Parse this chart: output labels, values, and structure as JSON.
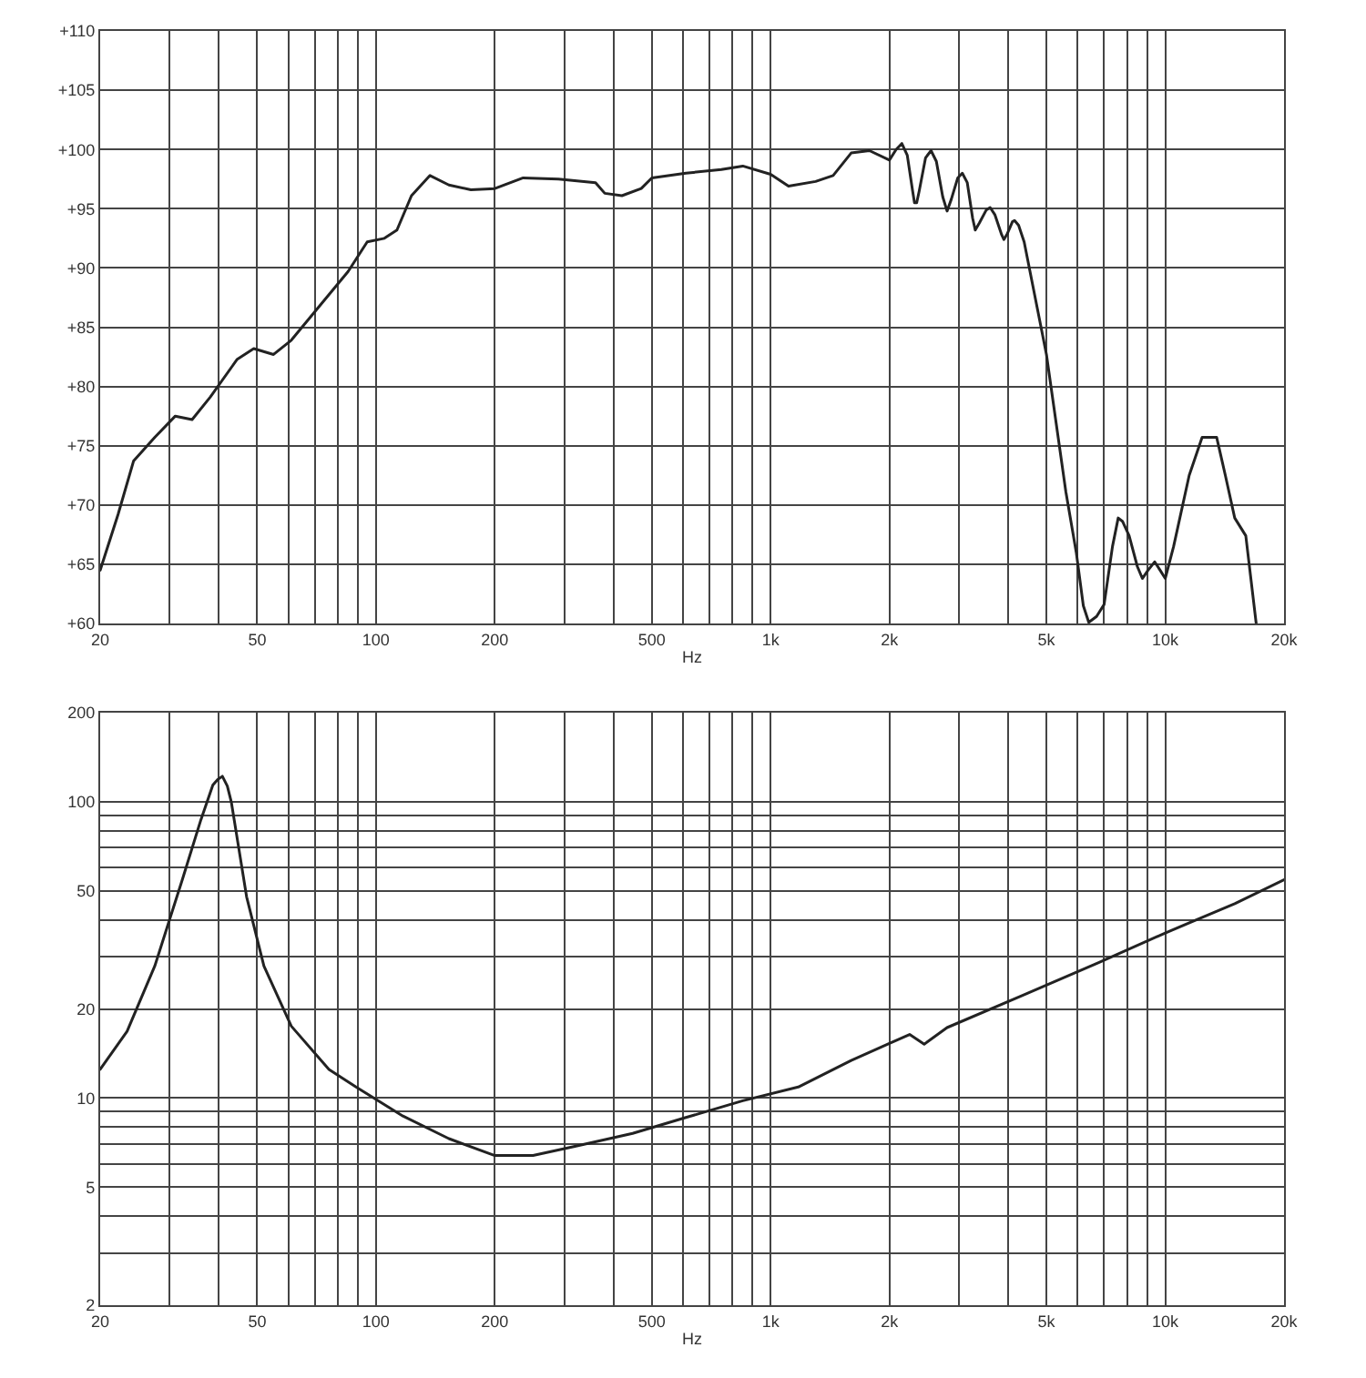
{
  "chart_data": [
    {
      "type": "line",
      "xlabel": "Hz",
      "log": "x",
      "grid": true,
      "marker": "none",
      "line_style": "solid",
      "xlim": [
        20,
        20000
      ],
      "xticks": [
        20,
        50,
        100,
        200,
        500,
        {
          "value": 1000,
          "label": "1k"
        },
        {
          "value": 2000,
          "label": "2k"
        },
        {
          "value": 5000,
          "label": "5k"
        },
        {
          "value": 10000,
          "label": "10k"
        },
        {
          "value": 20000,
          "label": "20k"
        }
      ],
      "ylim": [
        60,
        110
      ],
      "yticks": [
        {
          "value": 60,
          "label": "+60"
        },
        {
          "value": 65,
          "label": "+65"
        },
        {
          "value": 70,
          "label": "+70"
        },
        {
          "value": 75,
          "label": "+75"
        },
        {
          "value": 80,
          "label": "+80"
        },
        {
          "value": 85,
          "label": "+85"
        },
        {
          "value": 90,
          "label": "+90"
        },
        {
          "value": 95,
          "label": "+95"
        },
        {
          "value": 100,
          "label": "+100"
        },
        {
          "value": 105,
          "label": "+105"
        },
        {
          "value": 110,
          "label": "+110"
        }
      ],
      "series": [
        {
          "color": "#222222",
          "x": [
            20,
            22.2,
            24.3,
            27.5,
            31,
            34.2,
            38,
            44.5,
            49,
            55,
            61,
            72,
            85,
            95,
            105,
            113,
            123,
            137,
            153,
            174,
            200,
            236,
            290,
            360,
            380,
            420,
            470,
            500,
            610,
            750,
            850,
            1000,
            1110,
            1300,
            1440,
            1600,
            1780,
            2000,
            2080,
            2150,
            2220,
            2290,
            2315,
            2345,
            2380,
            2470,
            2550,
            2630,
            2730,
            2800,
            2870,
            2980,
            3060,
            3150,
            3250,
            3300,
            3380,
            3520,
            3600,
            3700,
            3850,
            3900,
            3980,
            4100,
            4150,
            4250,
            4390,
            5000,
            5600,
            5950,
            6200,
            6400,
            6700,
            7000,
            7350,
            7600,
            7800,
            8100,
            8500,
            8750,
            9050,
            9400,
            9700,
            10000,
            10500,
            11500,
            12400,
            13500,
            14200,
            15000,
            16000,
            17000
          ],
          "values": [
            64.5,
            69.2,
            73.7,
            75.7,
            77.5,
            77.2,
            79.1,
            82.3,
            83.2,
            82.7,
            83.9,
            86.8,
            89.7,
            92.2,
            92.5,
            93.2,
            96.1,
            97.8,
            97.0,
            96.6,
            96.7,
            97.6,
            97.5,
            97.2,
            96.3,
            96.1,
            96.7,
            97.6,
            98.0,
            98.3,
            98.6,
            97.9,
            96.9,
            97.3,
            97.8,
            99.7,
            99.9,
            99.1,
            100.0,
            100.5,
            99.5,
            96.5,
            95.5,
            95.5,
            96.5,
            99.3,
            99.9,
            99.0,
            96.0,
            94.8,
            95.8,
            97.6,
            98.0,
            97.2,
            94.2,
            93.2,
            93.8,
            94.9,
            95.1,
            94.5,
            92.8,
            92.4,
            92.9,
            93.9,
            94.0,
            93.6,
            92.2,
            82.7,
            71.1,
            66.0,
            61.5,
            60.1,
            60.6,
            61.6,
            66.5,
            68.9,
            68.6,
            67.4,
            64.8,
            63.8,
            64.5,
            65.2,
            64.5,
            63.8,
            66.5,
            72.5,
            75.7,
            75.7,
            72.5,
            68.9,
            67.4,
            60
          ]
        }
      ]
    },
    {
      "type": "line",
      "xlabel": "Hz",
      "log": "xy",
      "grid": true,
      "marker": "none",
      "line_style": "solid",
      "xlim": [
        20,
        20000
      ],
      "xticks": [
        20,
        50,
        100,
        200,
        500,
        {
          "value": 1000,
          "label": "1k"
        },
        {
          "value": 2000,
          "label": "2k"
        },
        {
          "value": 5000,
          "label": "5k"
        },
        {
          "value": 10000,
          "label": "10k"
        },
        {
          "value": 20000,
          "label": "20k"
        }
      ],
      "ylim": [
        2,
        200
      ],
      "yticks": [
        2,
        5,
        10,
        20,
        50,
        100,
        200
      ],
      "series": [
        {
          "color": "#222222",
          "x": [
            20,
            23.4,
            27.5,
            32.3,
            36,
            38.6,
            39.7,
            40.8,
            42,
            43,
            47,
            52,
            61,
            76,
            89,
            117,
            153,
            200,
            250,
            323,
            447,
            610,
            850,
            1175,
            1600,
            2000,
            2250,
            2450,
            2800,
            4350,
            6800,
            10000,
            15000,
            20000
          ],
          "values": [
            12.5,
            16.8,
            27.9,
            54.6,
            87,
            114,
            119,
            122,
            113,
            99.7,
            47.8,
            27.9,
            17.5,
            12.5,
            10.9,
            8.7,
            7.3,
            6.4,
            6.4,
            6.9,
            7.6,
            8.6,
            9.8,
            10.9,
            13.4,
            15.3,
            16.4,
            15.2,
            17.3,
            22.2,
            28.7,
            36.1,
            45.3,
            54.6
          ]
        }
      ]
    }
  ]
}
